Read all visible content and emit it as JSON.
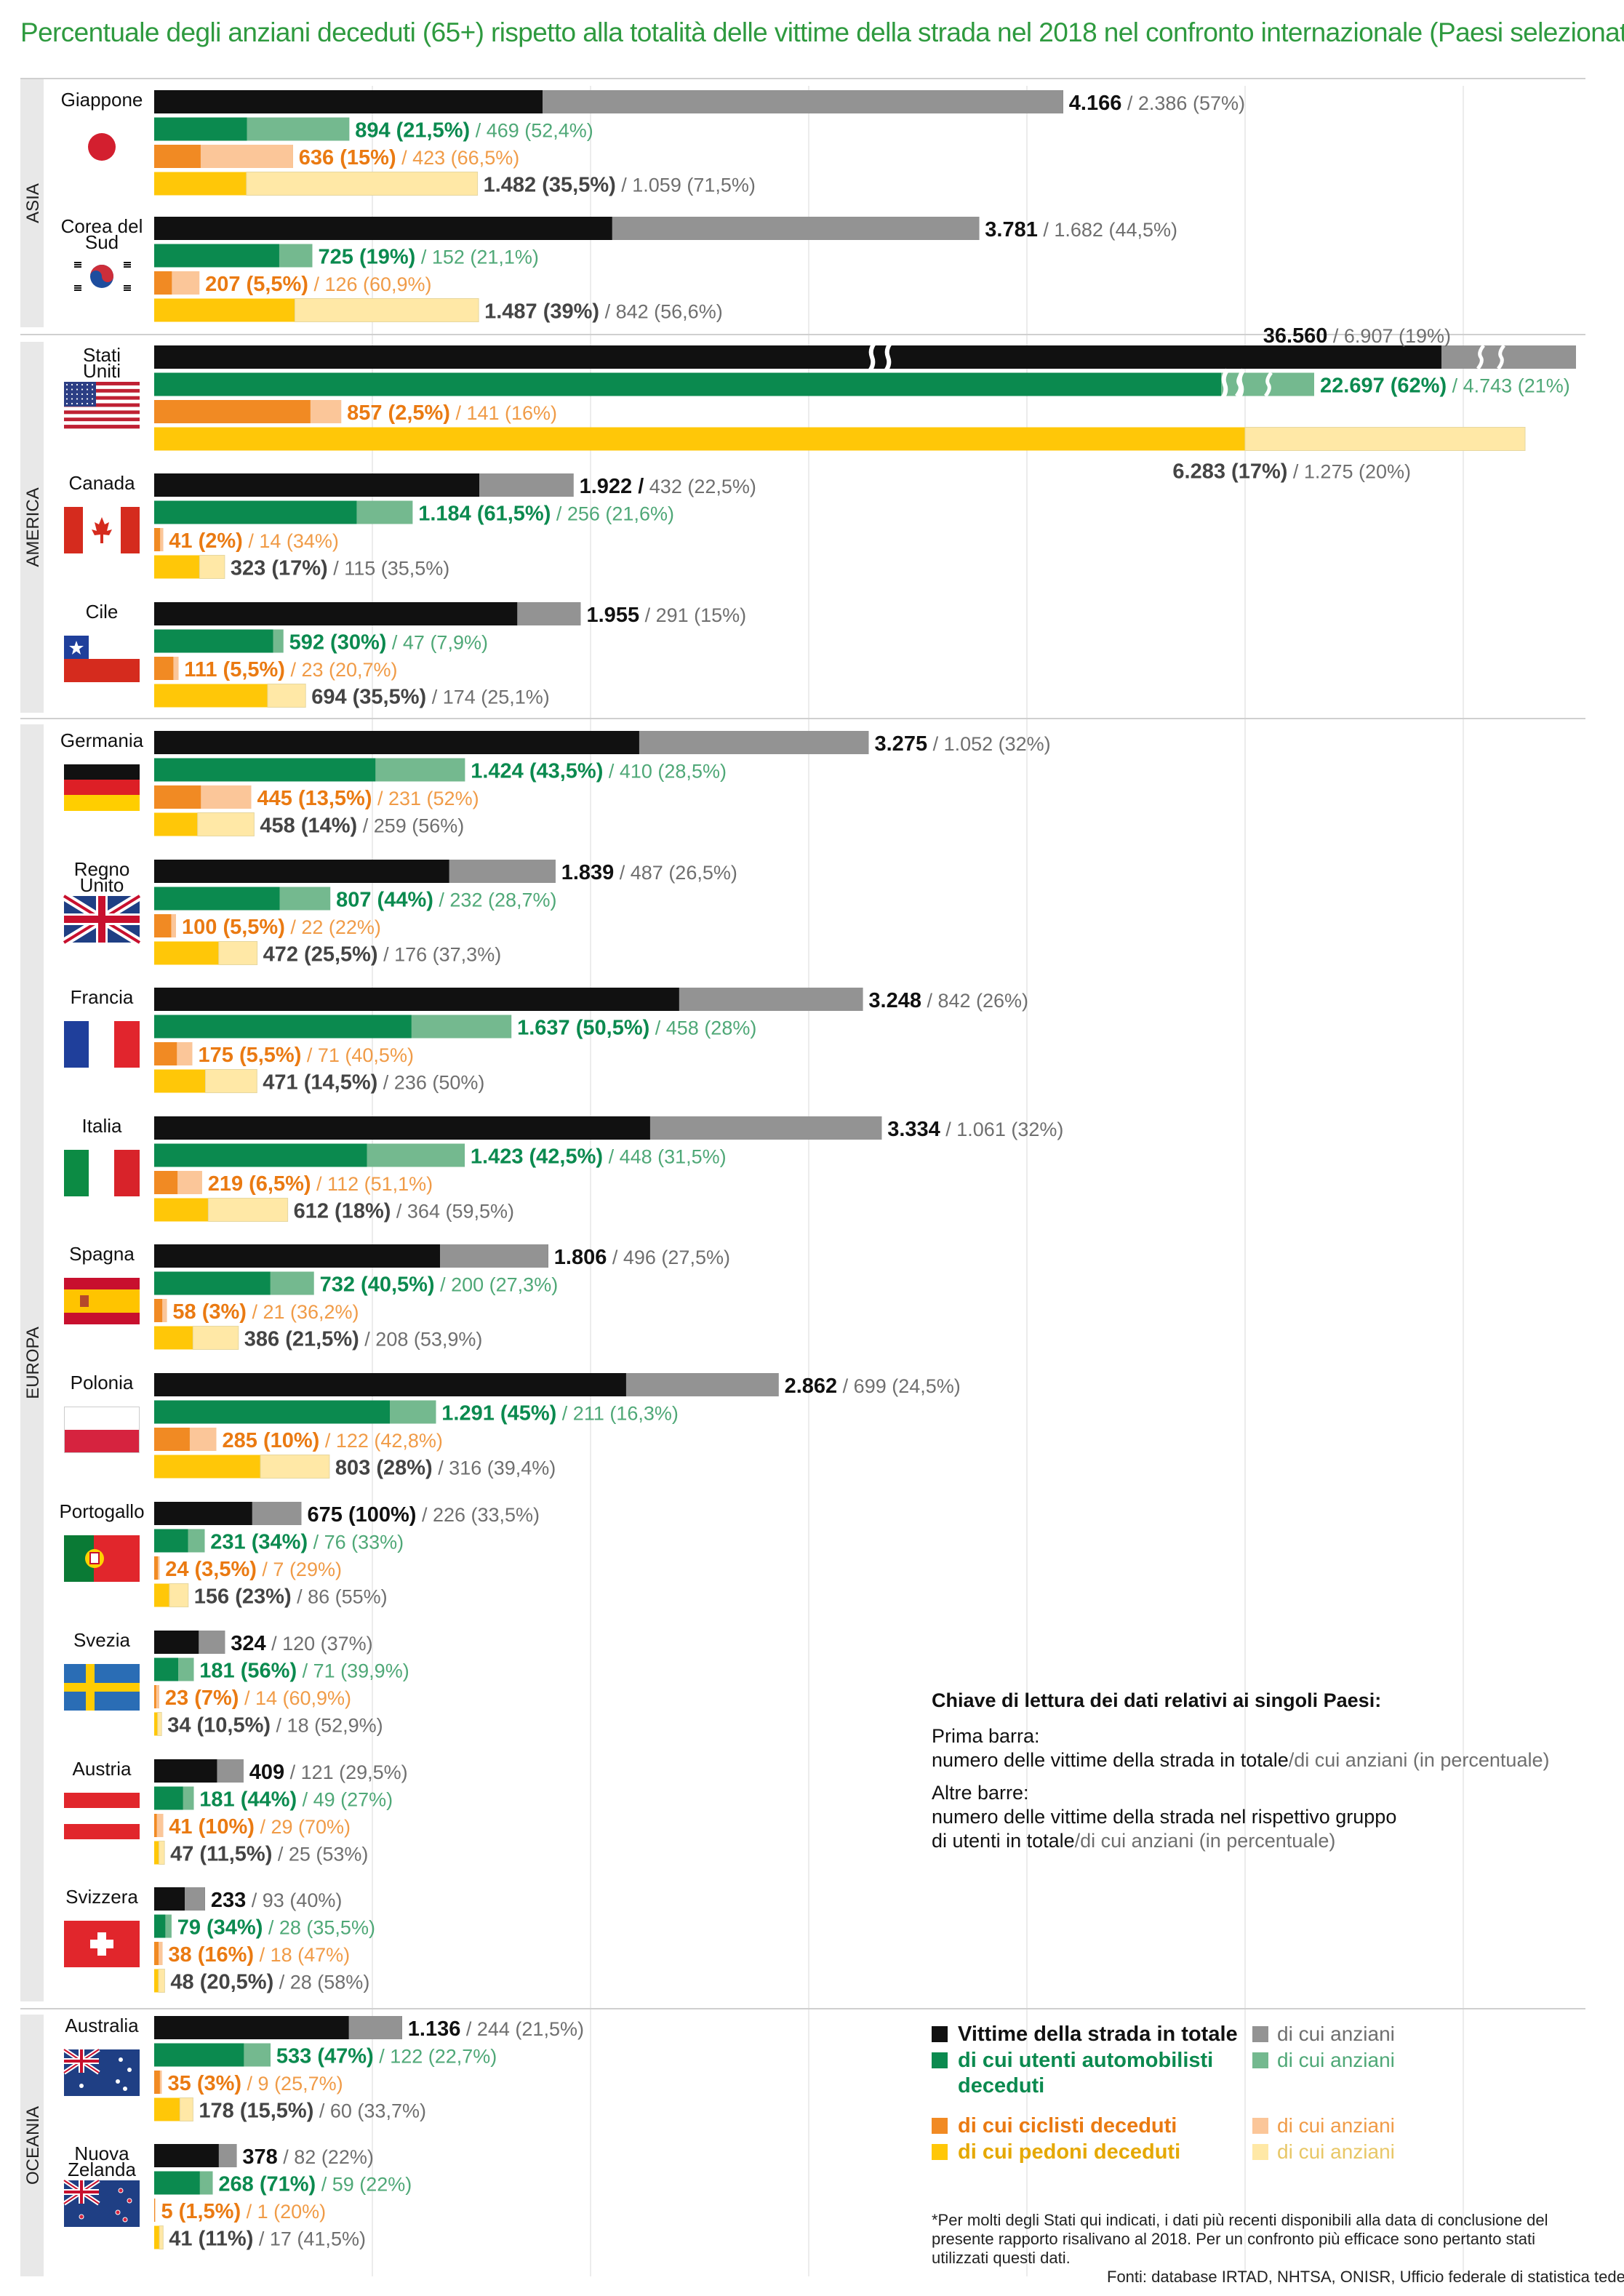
{
  "title": "Percentuale degli anziani deceduti (65+) rispetto alla totalità delle vittime della strada nel 2018 nel confronto internazionale (Paesi selezionati)*",
  "colors": {
    "total": "#111111",
    "total_elderly": "#939393",
    "car": "#0b8a4f",
    "car_elderly": "#74b98f",
    "bike": "#f18a23",
    "bike_elderly": "#fbc699",
    "ped": "#ffc708",
    "ped_elderly": "#ffe8a6",
    "car_text": "#0b8a4f",
    "car_sub_text": "#4fa877",
    "bike_text": "#ea7a12",
    "bike_sub_text": "#f09b47",
    "gray_text": "#6f6f6f"
  },
  "key": {
    "title": "Chiave di lettura dei dati relativi ai singoli Paesi:",
    "line1": "Prima barra:",
    "line2a": "numero delle vittime della strada in totale",
    "line2b": "/di cui anziani (in percentuale)",
    "line3": "Altre barre:",
    "line4": "numero delle vittime della strada nel rispettivo gruppo",
    "line5a": "di utenti in totale",
    "line5b": "/di cui anziani (in percentuale)"
  },
  "legend": {
    "total": "Vittime della strada in totale",
    "car": "di cui utenti automobilisti deceduti",
    "bike": "di cui ciclisti deceduti",
    "ped": "di cui pedoni deceduti",
    "elderly": "di cui anziani"
  },
  "footnote": "*Per molti degli Stati qui indicati, i dati più recenti disponibili alla data di conclusione del presente rapporto risalivano al 2018. Per un confronto più efficace sono pertanto stati utilizzati questi dati.",
  "sources": "Fonti: database IRTAD, NHTSA, ONISR, Ufficio federale di statistica tedesco",
  "chart_data": {
    "type": "bar",
    "orientation": "horizontal",
    "axis_max": 6500,
    "series_names": [
      "Vittime della strada in totale",
      "di cui utenti automobilisti deceduti",
      "di cui ciclisti deceduti",
      "di cui pedoni deceduti"
    ],
    "regions": [
      {
        "name": "ASIA",
        "countries": [
          {
            "name": "Giappone",
            "flag": "jp",
            "rows": [
              {
                "t": 4166,
                "e": 2386,
                "label": "4.166",
                "sub": "2.386 (57%)"
              },
              {
                "t": 894,
                "e": 469,
                "label": "894 (21,5%)",
                "sub": "469 (52,4%)"
              },
              {
                "t": 636,
                "e": 423,
                "label": "636 (15%)",
                "sub": "423 (66,5%)"
              },
              {
                "t": 1482,
                "e": 1059,
                "label": "1.482 (35,5%)",
                "sub": "1.059 (71,5%)"
              }
            ]
          },
          {
            "name": "Corea del Sud",
            "flag": "kr",
            "rows": [
              {
                "t": 3781,
                "e": 1682,
                "label": "3.781",
                "sub": "1.682 (44,5%)"
              },
              {
                "t": 725,
                "e": 152,
                "label": "725 (19%)",
                "sub": "152 (21,1%)"
              },
              {
                "t": 207,
                "e": 126,
                "label": "207 (5,5%)",
                "sub": "126 (60,9%)"
              },
              {
                "t": 1487,
                "e": 842,
                "label": "1.487 (39%)",
                "sub": "842 (56,6%)"
              }
            ]
          }
        ]
      },
      {
        "name": "AMERICA",
        "countries": [
          {
            "name": "Stati Uniti",
            "flag": "us",
            "broken": true,
            "rows": [
              {
                "t": 36560,
                "e": 6907,
                "label": "36.560",
                "sub": "6.907 (19%)"
              },
              {
                "t": 22697,
                "e": 4743,
                "label": "22.697 (62%)",
                "sub": "4.743 (21%)"
              },
              {
                "t": 857,
                "e": 141,
                "label": "857 (2,5%)",
                "sub": "141 (16%)"
              },
              {
                "t": 6283,
                "e": 1275,
                "label": "6.283 (17%)",
                "sub": "1.275 (20%)"
              }
            ]
          },
          {
            "name": "Canada",
            "flag": "ca",
            "rows": [
              {
                "t": 1922,
                "e": 432,
                "label": "1.922 /",
                "sub": "432 (22,5%)"
              },
              {
                "t": 1184,
                "e": 256,
                "label": "1.184 (61,5%)",
                "sub": "256 (21,6%)"
              },
              {
                "t": 41,
                "e": 14,
                "label": "41 (2%)",
                "sub": "14 (34%)"
              },
              {
                "t": 323,
                "e": 115,
                "label": "323 (17%)",
                "sub": "115 (35,5%)"
              }
            ]
          },
          {
            "name": "Cile",
            "flag": "cl",
            "rows": [
              {
                "t": 1955,
                "e": 291,
                "label": "1.955",
                "sub": "291 (15%)"
              },
              {
                "t": 592,
                "e": 47,
                "label": "592 (30%)",
                "sub": "47 (7,9%)"
              },
              {
                "t": 111,
                "e": 23,
                "label": "111 (5,5%)",
                "sub": "23 (20,7%)"
              },
              {
                "t": 694,
                "e": 174,
                "label": "694 (35,5%)",
                "sub": "174 (25,1%)"
              }
            ]
          }
        ]
      },
      {
        "name": "EUROPA",
        "countries": [
          {
            "name": "Germania",
            "flag": "de",
            "rows": [
              {
                "t": 3275,
                "e": 1052,
                "label": "3.275",
                "sub": "1.052 (32%)"
              },
              {
                "t": 1424,
                "e": 410,
                "label": "1.424 (43,5%)",
                "sub": "410 (28,5%)"
              },
              {
                "t": 445,
                "e": 231,
                "label": "445 (13,5%)",
                "sub": "231 (52%)"
              },
              {
                "t": 458,
                "e": 259,
                "label": "458 (14%)",
                "sub": "259 (56%)"
              }
            ]
          },
          {
            "name": "Regno Unito",
            "flag": "gb",
            "rows": [
              {
                "t": 1839,
                "e": 487,
                "label": "1.839",
                "sub": "487 (26,5%)"
              },
              {
                "t": 807,
                "e": 232,
                "label": "807 (44%)",
                "sub": "232 (28,7%)"
              },
              {
                "t": 100,
                "e": 22,
                "label": "100 (5,5%)",
                "sub": "22 (22%)"
              },
              {
                "t": 472,
                "e": 176,
                "label": "472 (25,5%)",
                "sub": "176 (37,3%)"
              }
            ]
          },
          {
            "name": "Francia",
            "flag": "fr",
            "rows": [
              {
                "t": 3248,
                "e": 842,
                "label": "3.248",
                "sub": "842 (26%)"
              },
              {
                "t": 1637,
                "e": 458,
                "label": "1.637 (50,5%)",
                "sub": "458 (28%)"
              },
              {
                "t": 175,
                "e": 71,
                "label": "175 (5,5%)",
                "sub": "71 (40,5%)"
              },
              {
                "t": 471,
                "e": 236,
                "label": "471 (14,5%)",
                "sub": "236 (50%)"
              }
            ]
          },
          {
            "name": "Italia",
            "flag": "it",
            "rows": [
              {
                "t": 3334,
                "e": 1061,
                "label": "3.334",
                "sub": "1.061 (32%)"
              },
              {
                "t": 1423,
                "e": 448,
                "label": "1.423 (42,5%)",
                "sub": "448 (31,5%)"
              },
              {
                "t": 219,
                "e": 112,
                "label": "219 (6,5%)",
                "sub": "112 (51,1%)"
              },
              {
                "t": 612,
                "e": 364,
                "label": "612 (18%)",
                "sub": "364 (59,5%)"
              }
            ]
          },
          {
            "name": "Spagna",
            "flag": "es",
            "rows": [
              {
                "t": 1806,
                "e": 496,
                "label": "1.806",
                "sub": "496 (27,5%)"
              },
              {
                "t": 732,
                "e": 200,
                "label": "732 (40,5%)",
                "sub": "200 (27,3%)"
              },
              {
                "t": 58,
                "e": 21,
                "label": "58 (3%)",
                "sub": "21 (36,2%)"
              },
              {
                "t": 386,
                "e": 208,
                "label": "386 (21,5%)",
                "sub": "208 (53,9%)"
              }
            ]
          },
          {
            "name": "Polonia",
            "flag": "pl",
            "rows": [
              {
                "t": 2862,
                "e": 699,
                "label": "2.862",
                "sub": "699 (24,5%)"
              },
              {
                "t": 1291,
                "e": 211,
                "label": "1.291 (45%)",
                "sub": "211 (16,3%)"
              },
              {
                "t": 285,
                "e": 122,
                "label": "285 (10%)",
                "sub": "122 (42,8%)"
              },
              {
                "t": 803,
                "e": 316,
                "label": "803 (28%)",
                "sub": "316 (39,4%)"
              }
            ]
          },
          {
            "name": "Portogallo",
            "flag": "pt",
            "rows": [
              {
                "t": 675,
                "e": 226,
                "label": "675 (100%)",
                "sub": "226 (33,5%)"
              },
              {
                "t": 231,
                "e": 76,
                "label": "231 (34%)",
                "sub": "76 (33%)"
              },
              {
                "t": 24,
                "e": 7,
                "label": "24 (3,5%)",
                "sub": "7 (29%)"
              },
              {
                "t": 156,
                "e": 86,
                "label": "156 (23%)",
                "sub": "86 (55%)"
              }
            ]
          },
          {
            "name": "Svezia",
            "flag": "se",
            "rows": [
              {
                "t": 324,
                "e": 120,
                "label": "324",
                "sub": "120 (37%)"
              },
              {
                "t": 181,
                "e": 71,
                "label": "181 (56%)",
                "sub": "71 (39,9%)"
              },
              {
                "t": 23,
                "e": 14,
                "label": "23 (7%)",
                "sub": "14 (60,9%)"
              },
              {
                "t": 34,
                "e": 18,
                "label": "34 (10,5%)",
                "sub": "18 (52,9%)"
              }
            ]
          },
          {
            "name": "Austria",
            "flag": "at",
            "rows": [
              {
                "t": 409,
                "e": 121,
                "label": "409",
                "sub": "121 (29,5%)"
              },
              {
                "t": 181,
                "e": 49,
                "label": "181 (44%)",
                "sub": "49 (27%)"
              },
              {
                "t": 41,
                "e": 29,
                "label": "41 (10%)",
                "sub": "29 (70%)"
              },
              {
                "t": 47,
                "e": 25,
                "label": "47 (11,5%)",
                "sub": "25 (53%)"
              }
            ]
          },
          {
            "name": "Svizzera",
            "flag": "ch",
            "rows": [
              {
                "t": 233,
                "e": 93,
                "label": "233",
                "sub": "93 (40%)"
              },
              {
                "t": 79,
                "e": 28,
                "label": "79 (34%)",
                "sub": "28 (35,5%)"
              },
              {
                "t": 38,
                "e": 18,
                "label": "38 (16%)",
                "sub": "18 (47%)"
              },
              {
                "t": 48,
                "e": 28,
                "label": "48 (20,5%)",
                "sub": "28 (58%)"
              }
            ]
          }
        ]
      },
      {
        "name": "OCEANIA",
        "countries": [
          {
            "name": "Australia",
            "flag": "au",
            "rows": [
              {
                "t": 1136,
                "e": 244,
                "label": "1.136",
                "sub": "244 (21,5%)"
              },
              {
                "t": 533,
                "e": 122,
                "label": "533 (47%)",
                "sub": "122 (22,7%)"
              },
              {
                "t": 35,
                "e": 9,
                "label": "35 (3%)",
                "sub": "9 (25,7%)"
              },
              {
                "t": 178,
                "e": 60,
                "label": "178 (15,5%)",
                "sub": "60 (33,7%)"
              }
            ]
          },
          {
            "name": "Nuova Zelanda",
            "flag": "nz",
            "rows": [
              {
                "t": 378,
                "e": 82,
                "label": "378",
                "sub": "82 (22%)"
              },
              {
                "t": 268,
                "e": 59,
                "label": "268 (71%)",
                "sub": "59 (22%)"
              },
              {
                "t": 5,
                "e": 1,
                "label": "5 (1,5%)",
                "sub": "1 (20%)"
              },
              {
                "t": 41,
                "e": 17,
                "label": "41 (11%)",
                "sub": "17 (41,5%)"
              }
            ]
          }
        ]
      }
    ]
  }
}
